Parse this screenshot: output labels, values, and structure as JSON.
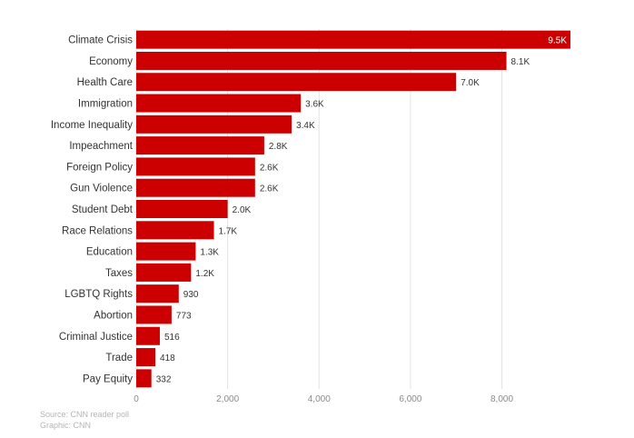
{
  "chart_data": {
    "type": "bar",
    "orientation": "horizontal",
    "categories": [
      "Climate Crisis",
      "Economy",
      "Health Care",
      "Immigration",
      "Income Inequality",
      "Impeachment",
      "Foreign Policy",
      "Gun Violence",
      "Student Debt",
      "Race Relations",
      "Education",
      "Taxes",
      "LGBTQ Rights",
      "Abortion",
      "Criminal Justice",
      "Trade",
      "Pay Equity"
    ],
    "values": [
      9500,
      8100,
      7000,
      3600,
      3400,
      2800,
      2600,
      2600,
      2000,
      1700,
      1300,
      1200,
      930,
      773,
      516,
      418,
      332
    ],
    "value_labels": [
      "9.5K",
      "8.1K",
      "7.0K",
      "3.6K",
      "3.4K",
      "2.8K",
      "2.6K",
      "2.6K",
      "2.0K",
      "1.7K",
      "1.3K",
      "1.2K",
      "930",
      "773",
      "516",
      "418",
      "332"
    ],
    "xticks": [
      0,
      2000,
      4000,
      6000,
      8000
    ],
    "xtick_labels": [
      "0",
      "2,000",
      "4,000",
      "6,000",
      "8,000"
    ],
    "xlim": [
      0,
      9500
    ],
    "grid": true,
    "bar_color": "#cc0000"
  },
  "footer": {
    "source": "Source: CNN reader poll",
    "graphic": "Graphic: CNN"
  }
}
